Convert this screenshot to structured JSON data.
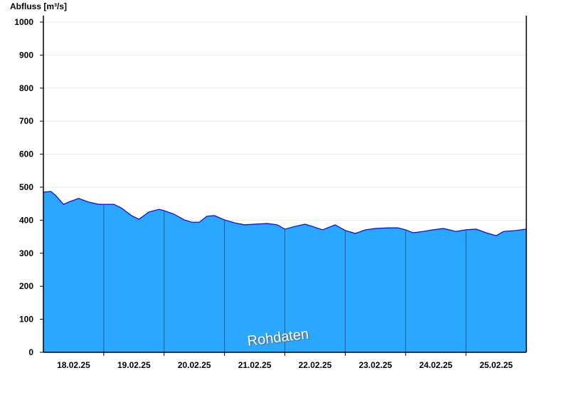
{
  "chart_data": {
    "type": "area",
    "title": "",
    "ylabel": "Abfluss [m³/s]",
    "xlabel": "",
    "ylim": [
      0,
      1000
    ],
    "xlim": [
      "2025-02-18T00:00",
      "2025-02-26T00:00"
    ],
    "yticks": [
      0,
      100,
      200,
      300,
      400,
      500,
      600,
      700,
      800,
      900,
      1000
    ],
    "xtick_labels": [
      "18.02.25",
      "19.02.25",
      "20.02.25",
      "21.02.25",
      "22.02.25",
      "23.02.25",
      "24.02.25",
      "25.02.25"
    ],
    "grid": "horizontal",
    "annotation": "Rohdaten",
    "colors": {
      "fill": "#2aa8ff",
      "line": "#0000ff",
      "day_lines": "#1f5f8a"
    },
    "series": [
      {
        "points": [
          [
            "2025-02-18T00:00",
            485
          ],
          [
            "2025-02-18T03:00",
            487
          ],
          [
            "2025-02-18T05:00",
            474
          ],
          [
            "2025-02-18T08:00",
            448
          ],
          [
            "2025-02-18T10:00",
            455
          ],
          [
            "2025-02-18T14:00",
            466
          ],
          [
            "2025-02-18T18:00",
            455
          ],
          [
            "2025-02-18T22:00",
            448
          ],
          [
            "2025-02-19T04:00",
            448
          ],
          [
            "2025-02-19T07:00",
            437
          ],
          [
            "2025-02-19T11:00",
            414
          ],
          [
            "2025-02-19T14:00",
            403
          ],
          [
            "2025-02-19T18:00",
            425
          ],
          [
            "2025-02-19T22:00",
            433
          ],
          [
            "2025-02-20T00:00",
            429
          ],
          [
            "2025-02-20T04:00",
            418
          ],
          [
            "2025-02-20T08:00",
            401
          ],
          [
            "2025-02-20T11:00",
            394
          ],
          [
            "2025-02-20T14:00",
            394
          ],
          [
            "2025-02-20T17:00",
            412
          ],
          [
            "2025-02-20T20:00",
            414
          ],
          [
            "2025-02-21T00:00",
            401
          ],
          [
            "2025-02-21T04:00",
            392
          ],
          [
            "2025-02-21T08:00",
            386
          ],
          [
            "2025-02-21T12:00",
            388
          ],
          [
            "2025-02-21T17:00",
            390
          ],
          [
            "2025-02-21T21:00",
            386
          ],
          [
            "2025-02-22T00:00",
            373
          ],
          [
            "2025-02-22T04:00",
            381
          ],
          [
            "2025-02-22T08:00",
            388
          ],
          [
            "2025-02-22T11:00",
            381
          ],
          [
            "2025-02-22T15:00",
            371
          ],
          [
            "2025-02-22T20:00",
            386
          ],
          [
            "2025-02-23T00:00",
            369
          ],
          [
            "2025-02-23T04:00",
            360
          ],
          [
            "2025-02-23T08:00",
            371
          ],
          [
            "2025-02-23T12:00",
            375
          ],
          [
            "2025-02-23T17:00",
            377
          ],
          [
            "2025-02-23T21:00",
            377
          ],
          [
            "2025-02-24T00:00",
            371
          ],
          [
            "2025-02-24T03:00",
            362
          ],
          [
            "2025-02-24T07:00",
            366
          ],
          [
            "2025-02-24T11:00",
            371
          ],
          [
            "2025-02-24T15:00",
            375
          ],
          [
            "2025-02-24T20:00",
            366
          ],
          [
            "2025-02-25T00:00",
            371
          ],
          [
            "2025-02-25T04:00",
            373
          ],
          [
            "2025-02-25T08:00",
            362
          ],
          [
            "2025-02-25T12:00",
            353
          ],
          [
            "2025-02-25T15:00",
            366
          ],
          [
            "2025-02-25T20:00",
            369
          ],
          [
            "2025-02-26T00:00",
            373
          ]
        ]
      }
    ]
  }
}
